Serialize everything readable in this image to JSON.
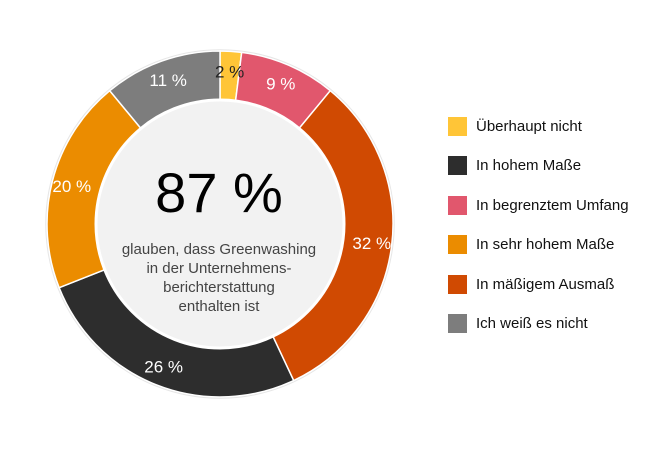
{
  "chart_data": {
    "type": "pie",
    "style": "donut",
    "title": "",
    "center_value": "87 %",
    "center_caption_lines": [
      "glauben, dass Greenwashing",
      "in der Unternehmens-",
      "berichterstattung",
      "enthalten ist"
    ],
    "slices": [
      {
        "name": "Überhaupt nicht",
        "value": 2,
        "label": "2 %",
        "color": "#ffc537",
        "label_color": "#222222"
      },
      {
        "name": "In begrenztem Umfang",
        "value": 9,
        "label": "9 %",
        "color": "#e1576d",
        "label_color": "#ffffff"
      },
      {
        "name": "In mäßigem Ausmaß",
        "value": 32,
        "label": "32 %",
        "color": "#d04a02",
        "label_color": "#ffffff"
      },
      {
        "name": "In hohem Maße",
        "value": 26,
        "label": "26 %",
        "color": "#2d2d2d",
        "label_color": "#ffffff"
      },
      {
        "name": "In sehr hohem Maße",
        "value": 20,
        "label": "20 %",
        "color": "#eb8c00",
        "label_color": "#ffffff"
      },
      {
        "name": "Ich weiß es nicht",
        "value": 11,
        "label": "11 %",
        "color": "#7d7d7d",
        "label_color": "#ffffff"
      }
    ],
    "legend_placement": "right",
    "legend": [
      {
        "label": "Überhaupt nicht",
        "color": "#ffc537"
      },
      {
        "label": "In hohem Maße",
        "color": "#2d2d2d"
      },
      {
        "label": "In begrenztem Umfang",
        "color": "#e1576d"
      },
      {
        "label": "In sehr hohem Maße",
        "color": "#eb8c00"
      },
      {
        "label": "In mäßigem Ausmaß",
        "color": "#d04a02"
      },
      {
        "label": "Ich weiß es nicht",
        "color": "#7d7d7d"
      }
    ],
    "colors": {
      "center_fill": "#f2f2f2",
      "ring_outline": "#e6e6e6"
    }
  }
}
